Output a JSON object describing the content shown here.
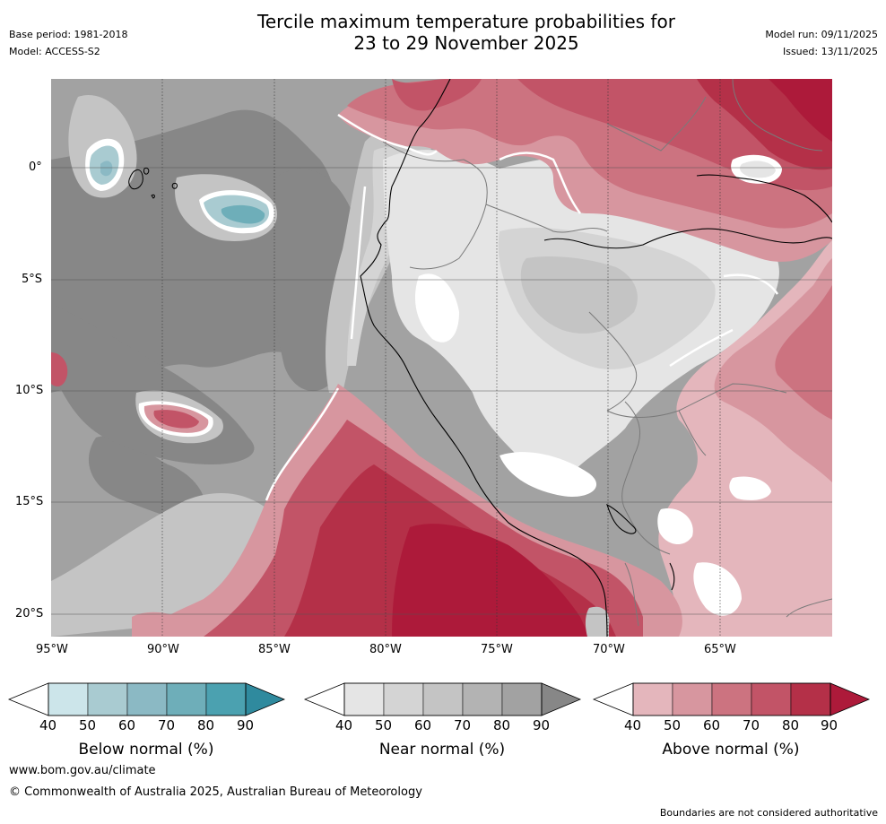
{
  "header": {
    "title_line1": "Tercile maximum temperature probabilities for",
    "title_line2": "23 to 29 November 2025",
    "base_period": "Base period: 1981-2018",
    "model": "Model: ACCESS-S2",
    "model_run": "Model run: 09/11/2025",
    "issued": "Issued: 13/11/2025"
  },
  "map": {
    "lon_labels": [
      "95°W",
      "90°W",
      "85°W",
      "80°W",
      "75°W",
      "70°W",
      "65°W"
    ],
    "lat_labels": [
      "0°",
      "5°S",
      "10°S",
      "15°S",
      "20°S"
    ]
  },
  "legend": {
    "below": {
      "title": "Below normal (%)",
      "ticks": [
        "40",
        "50",
        "60",
        "70",
        "80",
        "90"
      ],
      "colors": [
        "#cce5ea",
        "#a9cbd1",
        "#8bb9c4",
        "#6eaeb9",
        "#4ba1b0",
        "#2f8a9e"
      ]
    },
    "near": {
      "title": "Near normal (%)",
      "ticks": [
        "40",
        "50",
        "60",
        "70",
        "80",
        "90"
      ],
      "colors": [
        "#e5e5e5",
        "#d4d4d4",
        "#c4c4c4",
        "#b3b3b3",
        "#a2a2a2",
        "#878787"
      ]
    },
    "above": {
      "title": "Above normal (%)",
      "ticks": [
        "40",
        "50",
        "60",
        "70",
        "80",
        "90"
      ],
      "colors": [
        "#e4b6bc",
        "#d7969f",
        "#cc7380",
        "#c25467",
        "#b43048",
        "#ad1a3a"
      ]
    }
  },
  "footer": {
    "website": "www.bom.gov.au/climate",
    "copyright": "© Commonwealth of Australia 2025, Australian Bureau of Meteorology",
    "disclaimer": "Boundaries are not considered authoritative"
  }
}
